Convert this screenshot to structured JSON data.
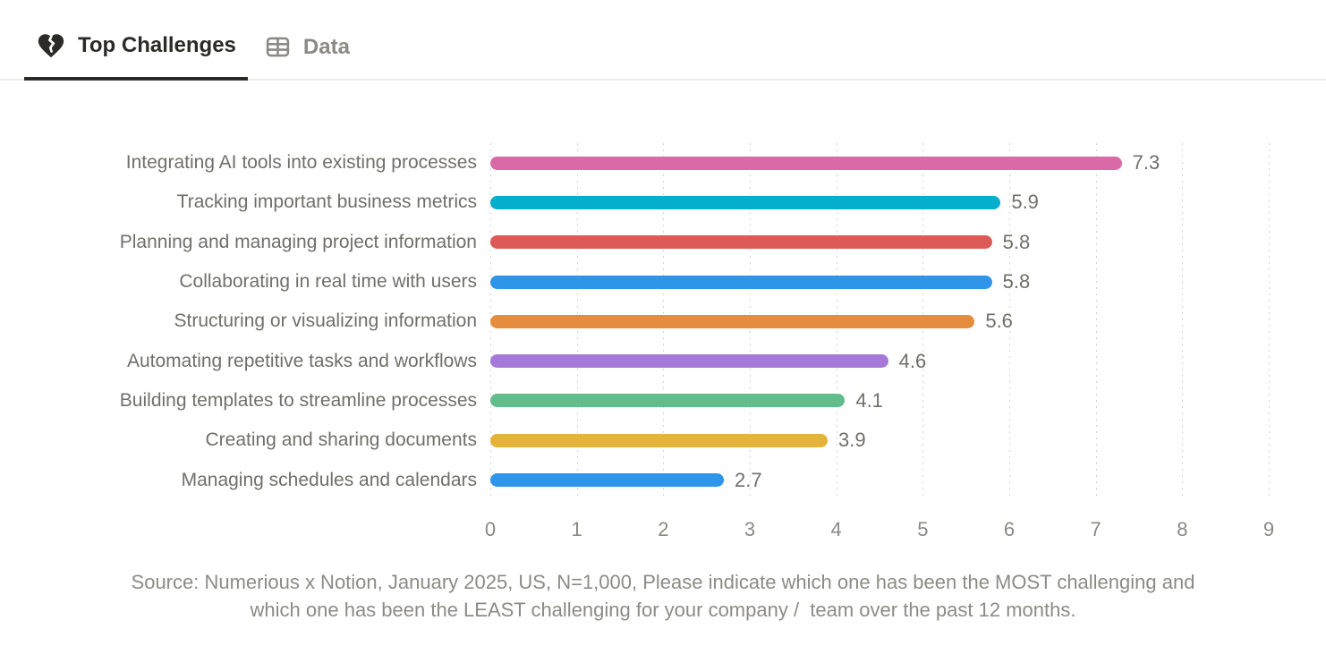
{
  "tabs": [
    {
      "label": "Top Challenges",
      "icon": "broken-heart",
      "active": true
    },
    {
      "label": "Data",
      "icon": "table",
      "active": false
    }
  ],
  "chart_data": {
    "type": "bar",
    "orientation": "horizontal",
    "title": "",
    "categories": [
      "Integrating AI tools into existing processes",
      "Tracking important business metrics",
      "Planning and managing project information",
      "Collaborating in real time with users",
      "Structuring or visualizing information",
      "Automating repetitive tasks and workflows",
      "Building templates to streamline processes",
      "Creating and sharing documents",
      "Managing schedules and calendars"
    ],
    "values": [
      7.3,
      5.9,
      5.8,
      5.8,
      5.6,
      4.6,
      4.1,
      3.9,
      2.7
    ],
    "value_labels": [
      "7.3",
      "5.9",
      "5.8",
      "5.8",
      "5.6",
      "4.6",
      "4.1",
      "3.9",
      "2.7"
    ],
    "bar_colors": [
      "#DA69A7",
      "#04AECC",
      "#DC5B56",
      "#2E95E8",
      "#E68C3F",
      "#A679D9",
      "#61BD8B",
      "#E5B23A",
      "#2E95E8"
    ],
    "xlim": [
      0,
      9
    ],
    "x_ticks": [
      "0",
      "1",
      "2",
      "3",
      "4",
      "5",
      "6",
      "7",
      "8",
      "9"
    ],
    "grid": "dotted-vertical",
    "legend": "none",
    "data_labels": "outside-end"
  },
  "source": {
    "line1": "Source: Numerious x Notion, January 2025, US, N=1,000, Please indicate which one has been the MOST challenging and",
    "line2": "which one has been the LEAST challenging for your company /  team over the past 12 months."
  },
  "colors": {
    "tab_active_text": "#2B2A27",
    "tab_inactive_text": "#8B8A85",
    "tab_underline": "#2B2A27",
    "tabbar_border": "#EDECEA",
    "category_label_text": "#706F6B",
    "value_label_text": "#706F6B",
    "axis_tick_text": "#8A8984",
    "source_text": "#8C8B87",
    "gridline": "#D4D3CF"
  }
}
